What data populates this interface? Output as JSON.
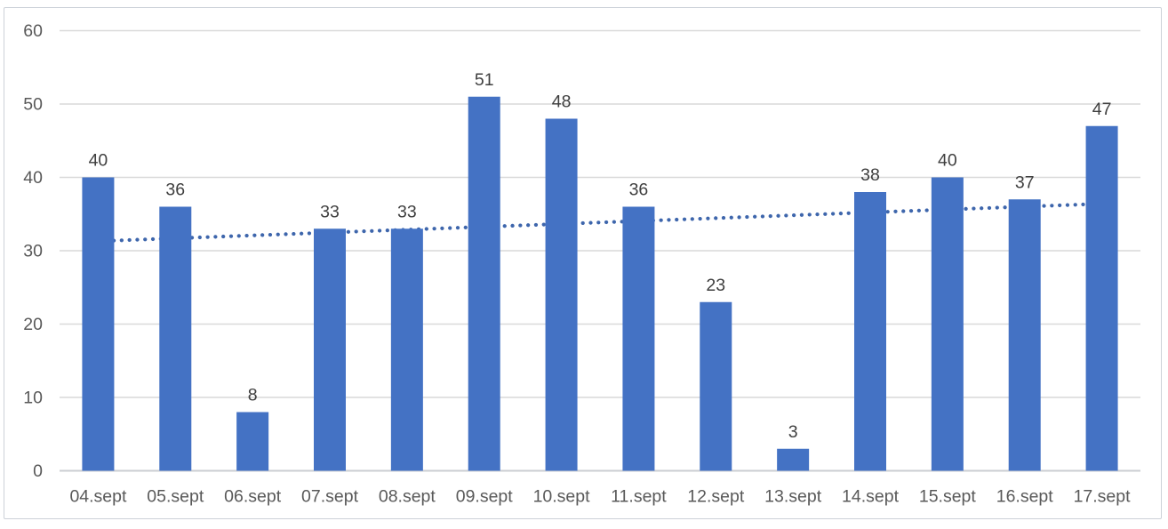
{
  "chart_data": {
    "type": "bar",
    "title": "",
    "xlabel": "",
    "ylabel": "",
    "categories": [
      "04.sept",
      "05.sept",
      "06.sept",
      "07.sept",
      "08.sept",
      "09.sept",
      "10.sept",
      "11.sept",
      "12.sept",
      "13.sept",
      "14.sept",
      "15.sept",
      "16.sept",
      "17.sept"
    ],
    "values": [
      40,
      36,
      8,
      33,
      33,
      51,
      48,
      36,
      23,
      3,
      38,
      40,
      37,
      47
    ],
    "value_labels_shown": true,
    "ylim": [
      0,
      60
    ],
    "yticks": [
      0,
      10,
      20,
      30,
      40,
      50,
      60
    ],
    "grid": "horizontal",
    "legend": "none",
    "trendline": {
      "type": "linear",
      "style": "dotted",
      "start_value": 31.3,
      "end_value": 36.4
    },
    "colors": {
      "bar": "#4472C4",
      "trendline": "#3E66AC",
      "gridline": "#D9D9D9",
      "axis_line": "#CBCED2",
      "tick_label": "#595959",
      "value_label": "#3F3F3F",
      "frame_border": "#CCD1D8",
      "background": "#FFFFFF"
    }
  }
}
